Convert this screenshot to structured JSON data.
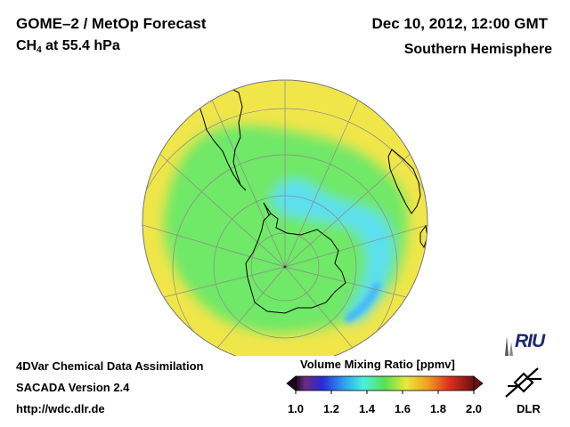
{
  "header": {
    "title": "GOME–2 / MetOp Forecast",
    "species_main": "CH",
    "species_sub": "4",
    "level": " at 55.4 hPa",
    "datetime": "Dec 10, 2012, 12:00 GMT",
    "region": "Southern Hemisphere"
  },
  "footer": {
    "line1": "4DVar Chemical Data Assimilation",
    "line2": "SACADA Version 2.4",
    "line3": "http://wdc.dlr.de"
  },
  "colorbar": {
    "title": "Volume Mixing Ratio [ppmv]",
    "ticks": [
      "1.0",
      "1.2",
      "1.4",
      "1.6",
      "1.8",
      "2.0"
    ],
    "min": 1.0,
    "max": 2.0
  },
  "logos": {
    "riu": "RIU",
    "dlr": "DLR"
  },
  "colors": {
    "high": "#f0e64a",
    "mid": "#6fe868",
    "low": "#5ce0f0",
    "lowest": "#47b8f5",
    "coast": "#000000",
    "grid": "#8a8a8a"
  }
}
